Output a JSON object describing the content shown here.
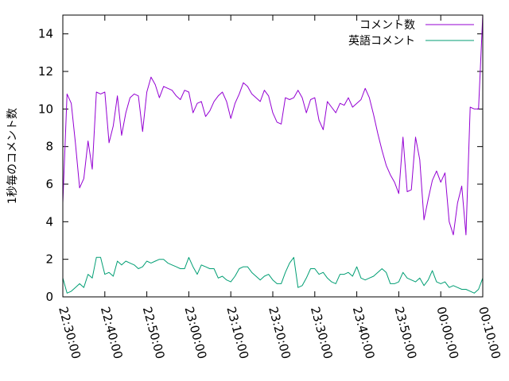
{
  "chart_data": {
    "type": "line",
    "ylabel": "1秒毎のコメント数",
    "ylim": [
      0,
      15
    ],
    "yticks": [
      0,
      2,
      4,
      6,
      8,
      10,
      12,
      14
    ],
    "xlim": [
      "22:30:00",
      "00:10:00"
    ],
    "xticks": [
      "22:30:00",
      "22:40:00",
      "22:50:00",
      "23:00:00",
      "23:10:00",
      "23:20:00",
      "23:30:00",
      "23:40:00",
      "23:50:00",
      "00:00:00",
      "00:10:00"
    ],
    "legend_position": "top-right",
    "x": [
      "22:30:00",
      "22:31:00",
      "22:32:00",
      "22:33:00",
      "22:34:00",
      "22:35:00",
      "22:36:00",
      "22:37:00",
      "22:38:00",
      "22:39:00",
      "22:40:00",
      "22:41:00",
      "22:42:00",
      "22:43:00",
      "22:44:00",
      "22:45:00",
      "22:46:00",
      "22:47:00",
      "22:48:00",
      "22:49:00",
      "22:50:00",
      "22:51:00",
      "22:52:00",
      "22:53:00",
      "22:54:00",
      "22:55:00",
      "22:56:00",
      "22:57:00",
      "22:58:00",
      "22:59:00",
      "23:00:00",
      "23:01:00",
      "23:02:00",
      "23:03:00",
      "23:04:00",
      "23:05:00",
      "23:06:00",
      "23:07:00",
      "23:08:00",
      "23:09:00",
      "23:10:00",
      "23:11:00",
      "23:12:00",
      "23:13:00",
      "23:14:00",
      "23:15:00",
      "23:16:00",
      "23:17:00",
      "23:18:00",
      "23:19:00",
      "23:20:00",
      "23:21:00",
      "23:22:00",
      "23:23:00",
      "23:24:00",
      "23:25:00",
      "23:26:00",
      "23:27:00",
      "23:28:00",
      "23:29:00",
      "23:30:00",
      "23:31:00",
      "23:32:00",
      "23:33:00",
      "23:34:00",
      "23:35:00",
      "23:36:00",
      "23:37:00",
      "23:38:00",
      "23:39:00",
      "23:40:00",
      "23:41:00",
      "23:42:00",
      "23:43:00",
      "23:44:00",
      "23:45:00",
      "23:46:00",
      "23:47:00",
      "23:48:00",
      "23:49:00",
      "23:50:00",
      "23:51:00",
      "23:52:00",
      "23:53:00",
      "23:54:00",
      "23:55:00",
      "23:56:00",
      "23:57:00",
      "23:58:00",
      "23:59:00",
      "00:00:00",
      "00:01:00",
      "00:02:00",
      "00:03:00",
      "00:04:00",
      "00:05:00",
      "00:06:00",
      "00:07:00",
      "00:08:00",
      "00:09:00",
      "00:10:00"
    ],
    "series": [
      {
        "name": "コメント数",
        "color": "#9400d3",
        "values": [
          5.0,
          10.8,
          10.3,
          8.2,
          5.8,
          6.3,
          8.3,
          6.8,
          10.9,
          10.8,
          10.9,
          8.2,
          9.1,
          10.7,
          8.6,
          9.8,
          10.6,
          10.8,
          10.7,
          8.8,
          10.9,
          11.7,
          11.3,
          10.6,
          11.2,
          11.1,
          11.0,
          10.7,
          10.5,
          11.0,
          10.9,
          9.8,
          10.3,
          10.4,
          9.6,
          9.9,
          10.4,
          10.7,
          10.9,
          10.4,
          9.5,
          10.3,
          10.8,
          11.4,
          11.2,
          10.8,
          10.6,
          10.4,
          11.0,
          10.7,
          9.8,
          9.3,
          9.2,
          10.6,
          10.5,
          10.6,
          11.0,
          10.6,
          9.8,
          10.5,
          10.6,
          9.4,
          8.9,
          10.4,
          10.1,
          9.8,
          10.3,
          10.2,
          10.6,
          10.1,
          10.3,
          10.5,
          11.1,
          10.6,
          9.7,
          8.7,
          7.8,
          7.0,
          6.5,
          6.1,
          5.5,
          8.5,
          5.6,
          5.7,
          8.5,
          7.3,
          4.1,
          5.2,
          6.2,
          6.7,
          6.1,
          6.6,
          4.0,
          3.3,
          5.0,
          5.9,
          3.3,
          10.1,
          10.0,
          10.0,
          15.0
        ]
      },
      {
        "name": "英語コメント",
        "color": "#009e73",
        "values": [
          1.0,
          0.2,
          0.3,
          0.5,
          0.7,
          0.5,
          1.2,
          1.0,
          2.1,
          2.1,
          1.2,
          1.3,
          1.1,
          1.9,
          1.7,
          1.9,
          1.8,
          1.7,
          1.5,
          1.6,
          1.9,
          1.8,
          1.9,
          2.0,
          2.0,
          1.8,
          1.7,
          1.6,
          1.5,
          1.5,
          2.1,
          1.6,
          1.2,
          1.7,
          1.6,
          1.5,
          1.5,
          1.0,
          1.1,
          0.9,
          0.8,
          1.1,
          1.5,
          1.6,
          1.6,
          1.3,
          1.1,
          0.9,
          1.1,
          1.2,
          0.9,
          0.7,
          0.7,
          1.3,
          1.8,
          2.1,
          0.5,
          0.6,
          1.0,
          1.5,
          1.5,
          1.2,
          1.3,
          1.0,
          0.8,
          0.7,
          1.2,
          1.2,
          1.3,
          1.1,
          1.6,
          1.0,
          0.9,
          1.0,
          1.1,
          1.3,
          1.5,
          1.3,
          0.7,
          0.7,
          0.8,
          1.3,
          1.0,
          0.9,
          0.8,
          1.0,
          0.6,
          0.9,
          1.4,
          0.8,
          0.7,
          0.8,
          0.5,
          0.6,
          0.5,
          0.4,
          0.4,
          0.3,
          0.2,
          0.4,
          1.0
        ]
      }
    ]
  }
}
